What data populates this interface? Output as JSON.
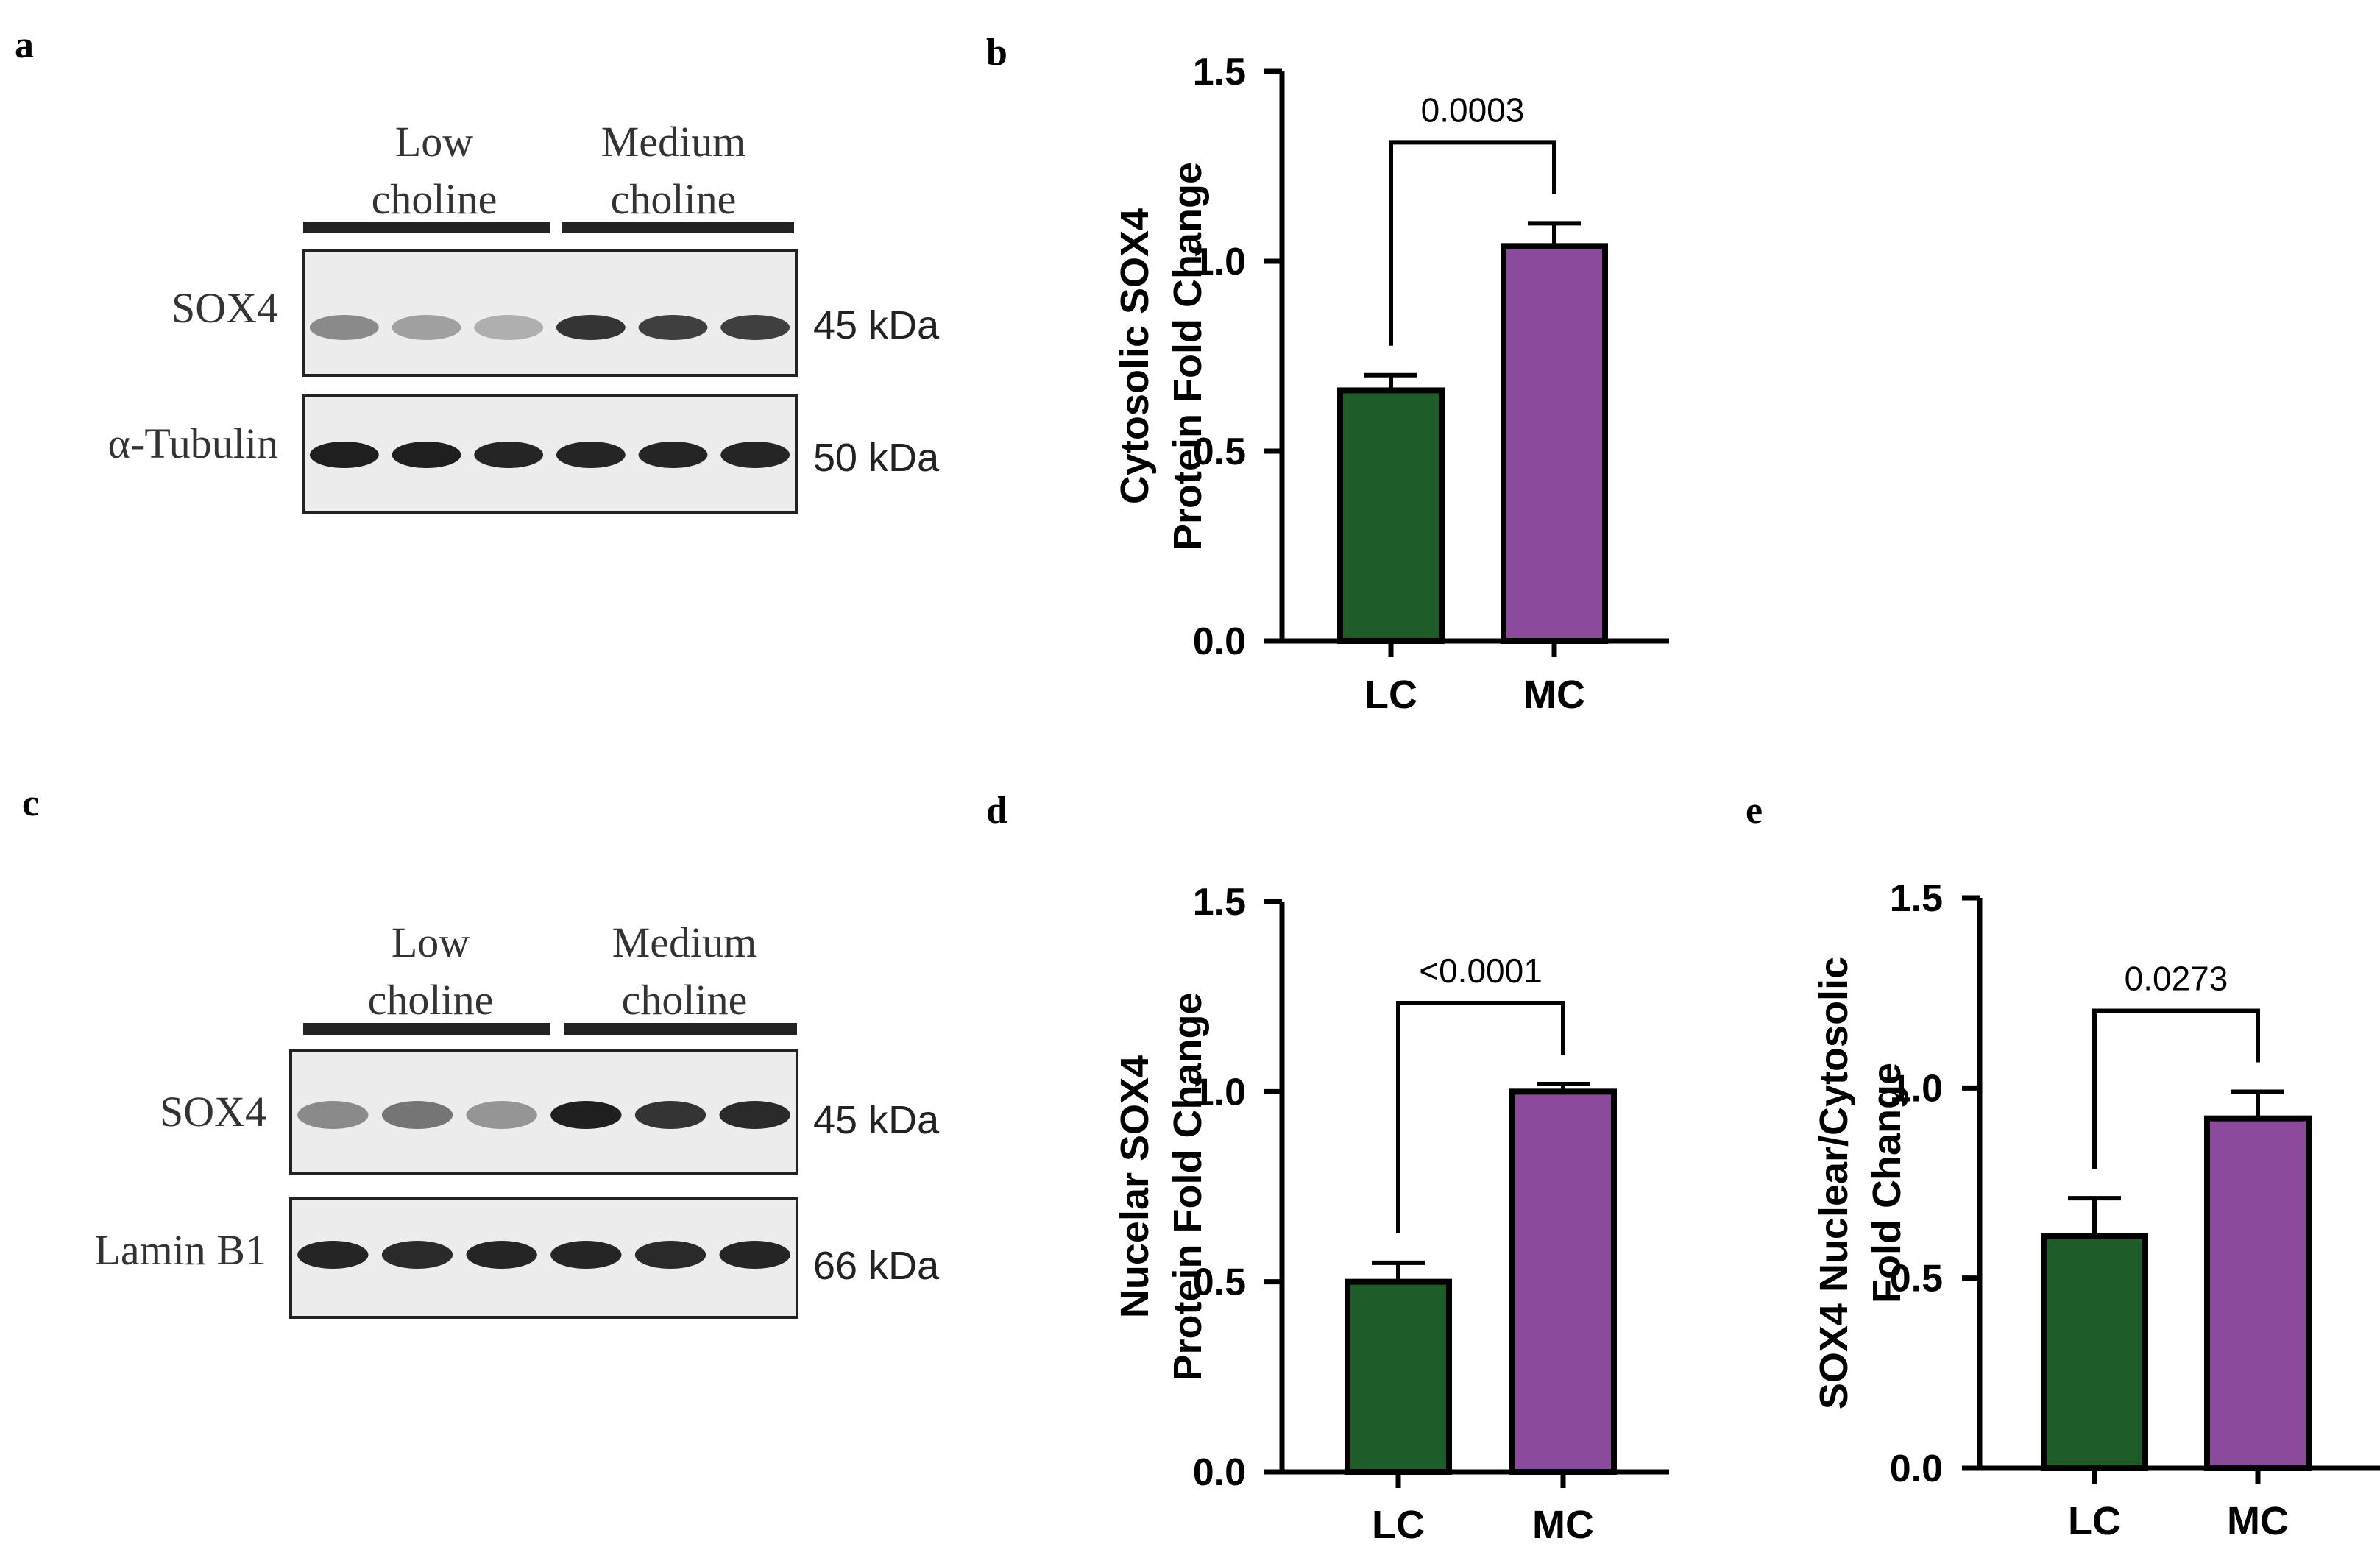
{
  "panels": [
    {
      "letter": "a"
    },
    {
      "letter": "b"
    },
    {
      "letter": "c"
    },
    {
      "letter": "d"
    },
    {
      "letter": "e"
    }
  ],
  "blots": [
    {
      "panel": "a",
      "groups": [
        {
          "line1": "Low",
          "line2": "choline"
        },
        {
          "line1": "Medium",
          "line2": "choline"
        }
      ],
      "rows": [
        {
          "label": "SOX4",
          "size": "45 kDa",
          "intensities": [
            0.45,
            0.35,
            0.28,
            0.85,
            0.8,
            0.8
          ]
        },
        {
          "label": "α-Tubulin",
          "size": "50 kDa",
          "intensities": [
            0.95,
            0.95,
            0.92,
            0.92,
            0.92,
            0.92
          ]
        }
      ]
    },
    {
      "panel": "c",
      "groups": [
        {
          "line1": "Low",
          "line2": "choline"
        },
        {
          "line1": "Medium",
          "line2": "choline"
        }
      ],
      "rows": [
        {
          "label": "SOX4",
          "size": "45 kDa",
          "intensities": [
            0.45,
            0.55,
            0.4,
            0.95,
            0.85,
            0.9
          ]
        },
        {
          "label": "Lamin B1",
          "size": "66 kDa",
          "intensities": [
            0.92,
            0.9,
            0.92,
            0.92,
            0.9,
            0.92
          ]
        }
      ]
    }
  ],
  "chart_data": [
    {
      "panel": "b",
      "type": "bar",
      "categories": [
        "LC",
        "MC"
      ],
      "values": [
        0.66,
        1.04
      ],
      "errors": [
        0.04,
        0.06
      ],
      "colors": [
        "#1e5c2a",
        "#8b4a9c"
      ],
      "ylabel": [
        "Cytosolic SOX4",
        "Protein Fold Change"
      ],
      "ylim": [
        0,
        1.5
      ],
      "yticks": [
        "0.0",
        "0.5",
        "1.0",
        "1.5"
      ],
      "significance": "0.0003"
    },
    {
      "panel": "d",
      "type": "bar",
      "categories": [
        "LC",
        "MC"
      ],
      "values": [
        0.5,
        1.0
      ],
      "errors": [
        0.05,
        0.02
      ],
      "colors": [
        "#1e5c2a",
        "#8b4a9c"
      ],
      "ylabel": [
        "Nucelar SOX4",
        "Protein Fold Change"
      ],
      "ylim": [
        0,
        1.5
      ],
      "yticks": [
        "0.0",
        "0.5",
        "1.0",
        "1.5"
      ],
      "significance": "<0.0001"
    },
    {
      "panel": "e",
      "type": "bar",
      "categories": [
        "LC",
        "MC"
      ],
      "values": [
        0.61,
        0.92
      ],
      "errors": [
        0.1,
        0.07
      ],
      "colors": [
        "#1e5c2a",
        "#8b4a9c"
      ],
      "ylabel": [
        "SOX4 Nuclear/Cytosolic",
        "Fold Change"
      ],
      "ylim": [
        0,
        1.5
      ],
      "yticks": [
        "0.0",
        "0.5",
        "1.0",
        "1.5"
      ],
      "significance": "0.0273"
    }
  ]
}
